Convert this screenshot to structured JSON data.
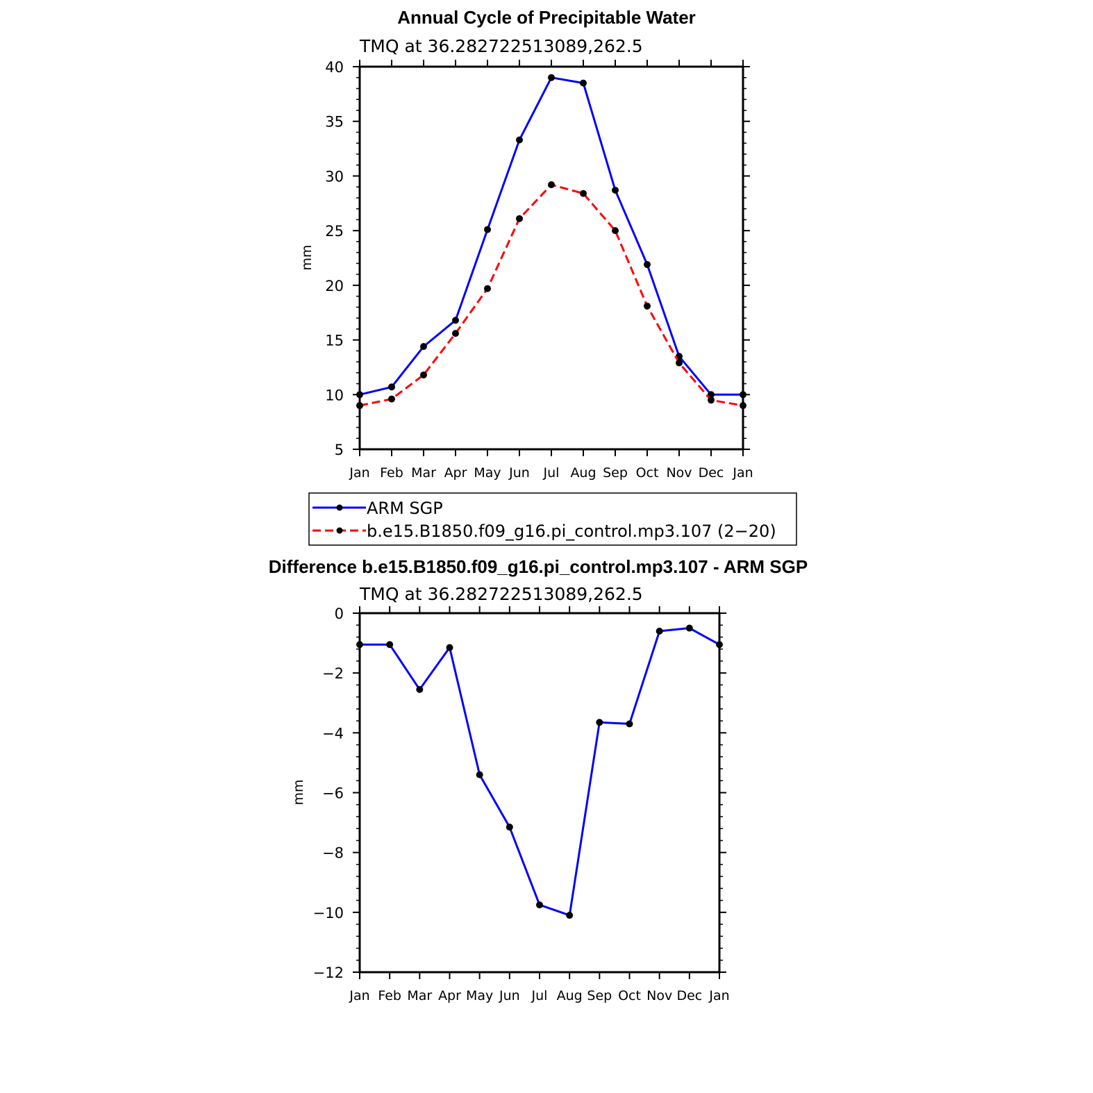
{
  "chart_data": [
    {
      "type": "line",
      "title": "Annual Cycle of Precipitable Water",
      "subtitle": "TMQ at 36.282722513089,262.5",
      "xlabel": "",
      "ylabel": "mm",
      "categories": [
        "Jan",
        "Feb",
        "Mar",
        "Apr",
        "May",
        "Jun",
        "Jul",
        "Aug",
        "Sep",
        "Oct",
        "Nov",
        "Dec",
        "Jan"
      ],
      "ylim": [
        5,
        40
      ],
      "yticks": [
        5,
        10,
        15,
        20,
        25,
        30,
        35,
        40
      ],
      "series": [
        {
          "name": "ARM SGP",
          "color": "#0000ff",
          "dash": "solid",
          "values": [
            10.0,
            10.7,
            14.4,
            16.8,
            25.1,
            33.3,
            39.0,
            38.5,
            28.7,
            21.9,
            13.5,
            10.0,
            10.0
          ]
        },
        {
          "name": "b.e15.B1850.f09_g16.pi_control.mp3.107 (2−20)",
          "color": "#ff0000",
          "dash": "dashed",
          "values": [
            9.0,
            9.6,
            11.8,
            15.6,
            19.7,
            26.1,
            29.2,
            28.4,
            25.0,
            18.1,
            12.9,
            9.5,
            9.0
          ]
        }
      ],
      "legend": "below"
    },
    {
      "type": "line",
      "title": "Difference b.e15.B1850.f09_g16.pi_control.mp3.107 - ARM SGP",
      "subtitle": "TMQ at 36.282722513089,262.5",
      "xlabel": "",
      "ylabel": "mm",
      "categories": [
        "Jan",
        "Feb",
        "Mar",
        "Apr",
        "May",
        "Jun",
        "Jul",
        "Aug",
        "Sep",
        "Oct",
        "Nov",
        "Dec",
        "Jan"
      ],
      "ylim": [
        -12,
        0
      ],
      "yticks": [
        -12,
        -10,
        -8,
        -6,
        -4,
        -2,
        0
      ],
      "ytick_labels": [
        "−12",
        "−10",
        "−8",
        "−6",
        "−4",
        "−2",
        "0"
      ],
      "series": [
        {
          "color": "#0000ff",
          "dash": "solid",
          "values": [
            -1.05,
            -1.05,
            -2.55,
            -1.15,
            -5.4,
            -7.15,
            -9.75,
            -10.1,
            -3.65,
            -3.7,
            -0.6,
            -0.5,
            -1.05
          ]
        }
      ]
    }
  ]
}
